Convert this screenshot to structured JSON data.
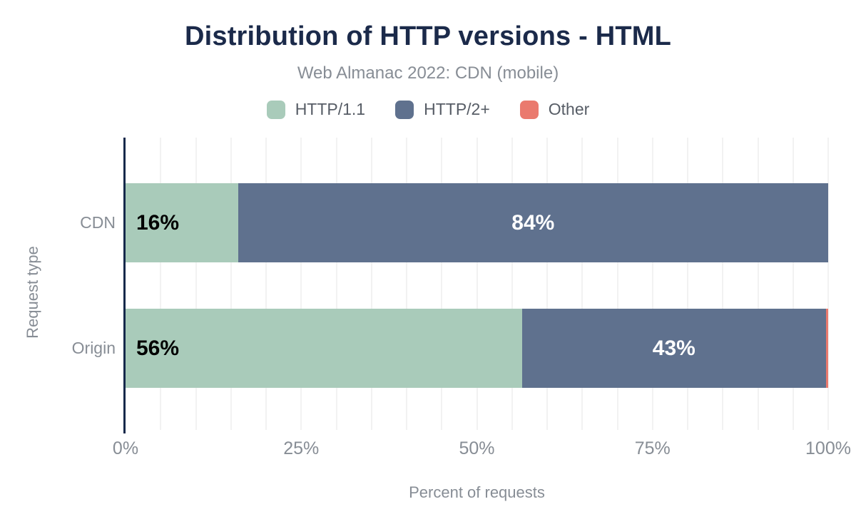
{
  "page": {
    "background": "#ffffff"
  },
  "chart_data": {
    "type": "bar",
    "orientation": "horizontal_stacked",
    "title": "Distribution of HTTP versions - HTML",
    "subtitle": "Web Almanac 2022: CDN (mobile)",
    "xlabel": "Percent of requests",
    "ylabel": "Request type",
    "categories": [
      "CDN",
      "Origin"
    ],
    "series": [
      {
        "name": "HTTP/1.1",
        "color": "#a9cbba",
        "values": [
          16,
          56.4
        ],
        "labels": [
          "16%",
          "56%"
        ],
        "label_color": "#000000"
      },
      {
        "name": "HTTP/2+",
        "color": "#5f718e",
        "values": [
          84,
          43.3
        ],
        "labels": [
          "84%",
          "43%"
        ],
        "label_color": "#ffffff"
      },
      {
        "name": "Other",
        "color": "#ea7a6e",
        "values": [
          0,
          0.3
        ],
        "labels": [
          "",
          ""
        ],
        "label_color": "#ffffff"
      }
    ],
    "xlim": [
      0,
      100
    ],
    "x_ticks": [
      {
        "value": 0,
        "label": "0%"
      },
      {
        "value": 25,
        "label": "25%"
      },
      {
        "value": 50,
        "label": "50%"
      },
      {
        "value": 75,
        "label": "75%"
      },
      {
        "value": 100,
        "label": "100%"
      }
    ],
    "grid": true,
    "grid_step_percent": 5,
    "legend_position": "top",
    "colors": {
      "title": "#1b2a4a",
      "axis_line": "#16294b",
      "gridline": "#f2f2f2",
      "muted_text": "#878d95",
      "legend_text": "#575d66"
    }
  }
}
